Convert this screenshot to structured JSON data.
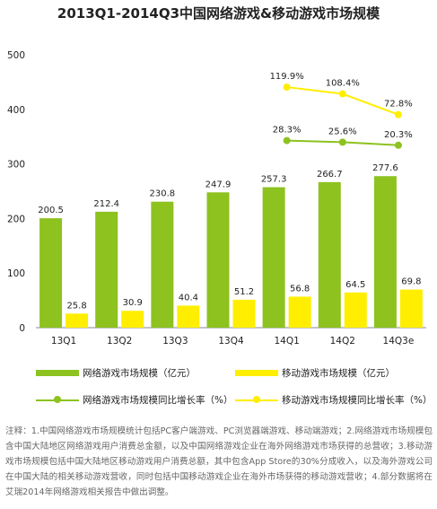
{
  "title": "2013Q1-2014Q3中国网络游戏&移动游戏市场规模",
  "chart_data": {
    "type": "bar",
    "categories": [
      "13Q1",
      "13Q2",
      "13Q3",
      "13Q4",
      "14Q1",
      "14Q2",
      "14Q3e"
    ],
    "ylim": [
      0,
      500
    ],
    "yticks": [
      "0",
      "100",
      "200",
      "300",
      "400",
      "500"
    ],
    "series": [
      {
        "name": "网络游戏市场规模（亿元）",
        "kind": "bar",
        "color": "#8dc21f",
        "values": [
          200.5,
          212.4,
          230.8,
          247.9,
          257.3,
          266.7,
          277.6
        ],
        "labels": [
          "200.5",
          "212.4",
          "230.8",
          "247.9",
          "257.3",
          "266.7",
          "277.6"
        ]
      },
      {
        "name": "移动游戏市场规模（亿元）",
        "kind": "bar",
        "color": "#ffee00",
        "values": [
          25.8,
          30.9,
          40.4,
          51.2,
          56.8,
          64.5,
          69.8
        ],
        "labels": [
          "25.8",
          "30.9",
          "40.4",
          "51.2",
          "56.8",
          "64.5",
          "69.8"
        ]
      },
      {
        "name": "网络游戏市场规模同比增长率（%）",
        "kind": "line",
        "color": "#8dc21f",
        "x": [
          "14Q1",
          "14Q2",
          "14Q3e"
        ],
        "values": [
          28.3,
          25.6,
          20.3
        ],
        "labels": [
          "28.3%",
          "25.6%",
          "20.3%"
        ]
      },
      {
        "name": "移动游戏市场规模同比增长率（%）",
        "kind": "line",
        "color": "#ffee00",
        "x": [
          "14Q1",
          "14Q2",
          "14Q3e"
        ],
        "values": [
          119.9,
          108.4,
          72.8
        ],
        "labels": [
          "119.9%",
          "108.4%",
          "72.8%"
        ]
      }
    ],
    "grid": false,
    "legend": "bottom"
  },
  "legend": {
    "item1": "网络游戏市场规模（亿元）",
    "item2": "移动游戏市场规模（亿元）",
    "item3": "网络游戏市场规模同比增长率（%）",
    "item4": "移动游戏市场规模同比增长率（%）"
  },
  "note": "注释：1.中国网络游戏市场规模统计包括PC客户端游戏、PC浏览器端游戏、移动端游戏；2.网络游戏市场规模包含中国大陆地区网络游戏用户消费总金额，以及中国网络游戏企业在海外网络游戏市场获得的总营收；3.移动游戏市场规模包括中国大陆地区移动游戏用户消费总额，其中包含App Store的30%分成收入，以及海外游戏公司在中国大陆的相关移动游戏营收，同时包括中国移动游戏企业在海外市场获得的移动游戏营收；4.部分数据将在艾瑞2014年网络游戏相关报告中做出调整。"
}
